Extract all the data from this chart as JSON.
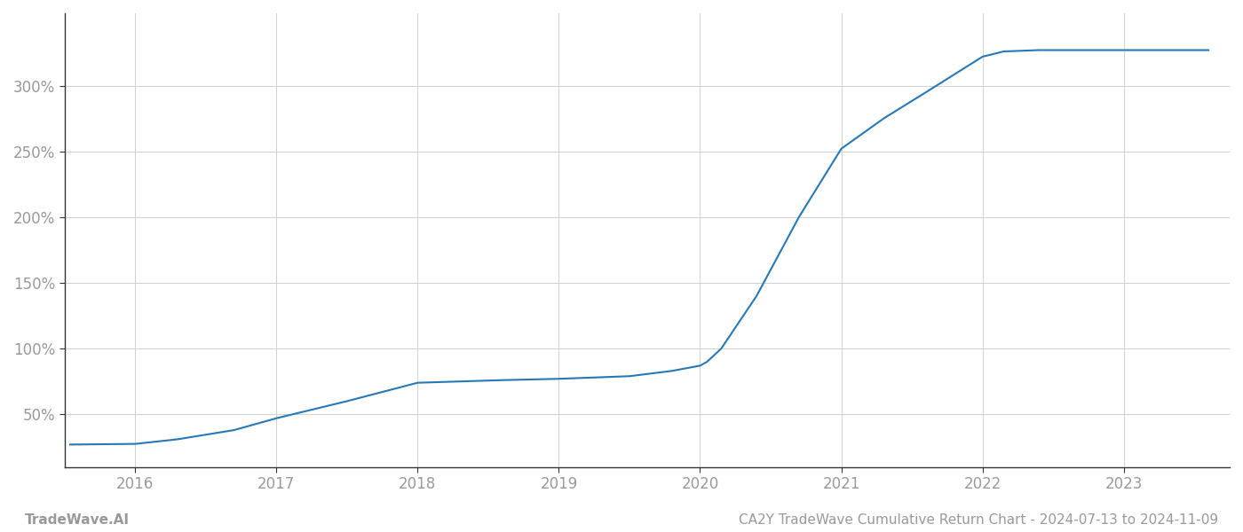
{
  "x_years": [
    2015.54,
    2016.0,
    2016.3,
    2016.7,
    2017.0,
    2017.5,
    2018.0,
    2018.3,
    2018.6,
    2019.0,
    2019.5,
    2019.8,
    2020.0,
    2020.05,
    2020.15,
    2020.4,
    2020.7,
    2021.0,
    2021.3,
    2021.6,
    2022.0,
    2022.15,
    2022.4,
    2022.7,
    2023.0,
    2023.3,
    2023.6
  ],
  "y_values": [
    27,
    27.5,
    31,
    38,
    47,
    60,
    74,
    75,
    76,
    77,
    79,
    83,
    87,
    90,
    100,
    140,
    200,
    252,
    275,
    295,
    322,
    326,
    327,
    327,
    327,
    327,
    327
  ],
  "line_color": "#2878b5",
  "line_width": 1.5,
  "yticks": [
    50,
    100,
    150,
    200,
    250,
    300
  ],
  "ytick_labels": [
    "50%",
    "100%",
    "150%",
    "200%",
    "250%",
    "300%"
  ],
  "xticks": [
    2016,
    2017,
    2018,
    2019,
    2020,
    2021,
    2022,
    2023
  ],
  "xlim": [
    2015.5,
    2023.75
  ],
  "ylim": [
    10,
    355
  ],
  "grid_color": "#d0d0d0",
  "bg_color": "#ffffff",
  "footer_left": "TradeWave.AI",
  "footer_right": "CA2Y TradeWave Cumulative Return Chart - 2024-07-13 to 2024-11-09",
  "tick_label_color": "#999999",
  "footer_color": "#999999",
  "spine_color": "#333333",
  "tick_fontsize": 12,
  "footer_fontsize": 11
}
